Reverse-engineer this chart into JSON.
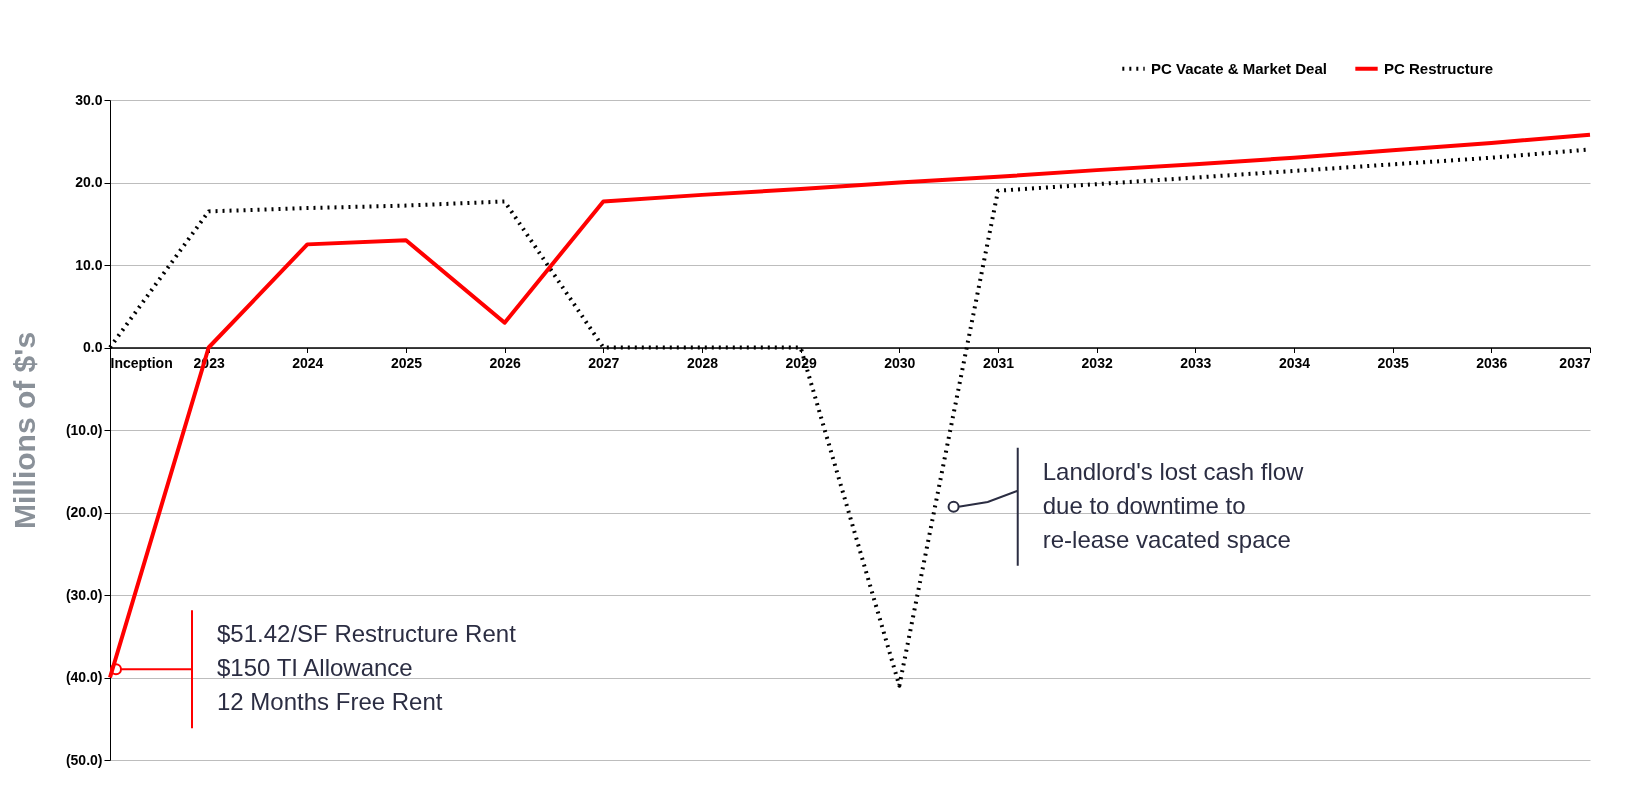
{
  "chart_data": {
    "type": "line",
    "ylabel": "Millions of $'s",
    "categories": [
      "Inception",
      "2023",
      "2024",
      "2025",
      "2026",
      "2027",
      "2028",
      "2029",
      "2030",
      "2031",
      "2032",
      "2033",
      "2034",
      "2035",
      "2036",
      "2037"
    ],
    "series": [
      {
        "name": "PC Vacate & Market Deal",
        "color": "#000000",
        "line_style": "dotted",
        "values": [
          0,
          16.5,
          16.9,
          17.2,
          17.7,
          0,
          0,
          0,
          -41.0,
          19.0,
          19.8,
          20.6,
          21.4,
          22.2,
          23.0,
          24.0
        ]
      },
      {
        "name": "PC Restructure",
        "color": "#ff0000",
        "line_style": "solid",
        "values": [
          -40.0,
          0,
          12.5,
          13.0,
          3.0,
          17.7,
          18.5,
          19.2,
          20.0,
          20.7,
          21.5,
          22.2,
          23.0,
          23.9,
          24.8,
          25.8
        ]
      }
    ],
    "ylim": [
      -50,
      30
    ],
    "yticks": [
      {
        "value": 30,
        "label": "30.0"
      },
      {
        "value": 20,
        "label": "20.0"
      },
      {
        "value": 10,
        "label": "10.0"
      },
      {
        "value": 0,
        "label": "0.0"
      },
      {
        "value": -10,
        "label": "(10.0)"
      },
      {
        "value": -20,
        "label": "(20.0)"
      },
      {
        "value": -30,
        "label": "(30.0)"
      },
      {
        "value": -40,
        "label": "(40.0)"
      },
      {
        "value": -50,
        "label": "(50.0)"
      }
    ],
    "grid": "y",
    "legend": "top right",
    "marker": "none",
    "annotations": [
      "$51.42/SF Restructure Rent\n$150 TI Allowance\n12 Months Free Rent",
      "Landlord's lost cash flow\ndue to downtime to\nre-lease vacated space"
    ]
  }
}
